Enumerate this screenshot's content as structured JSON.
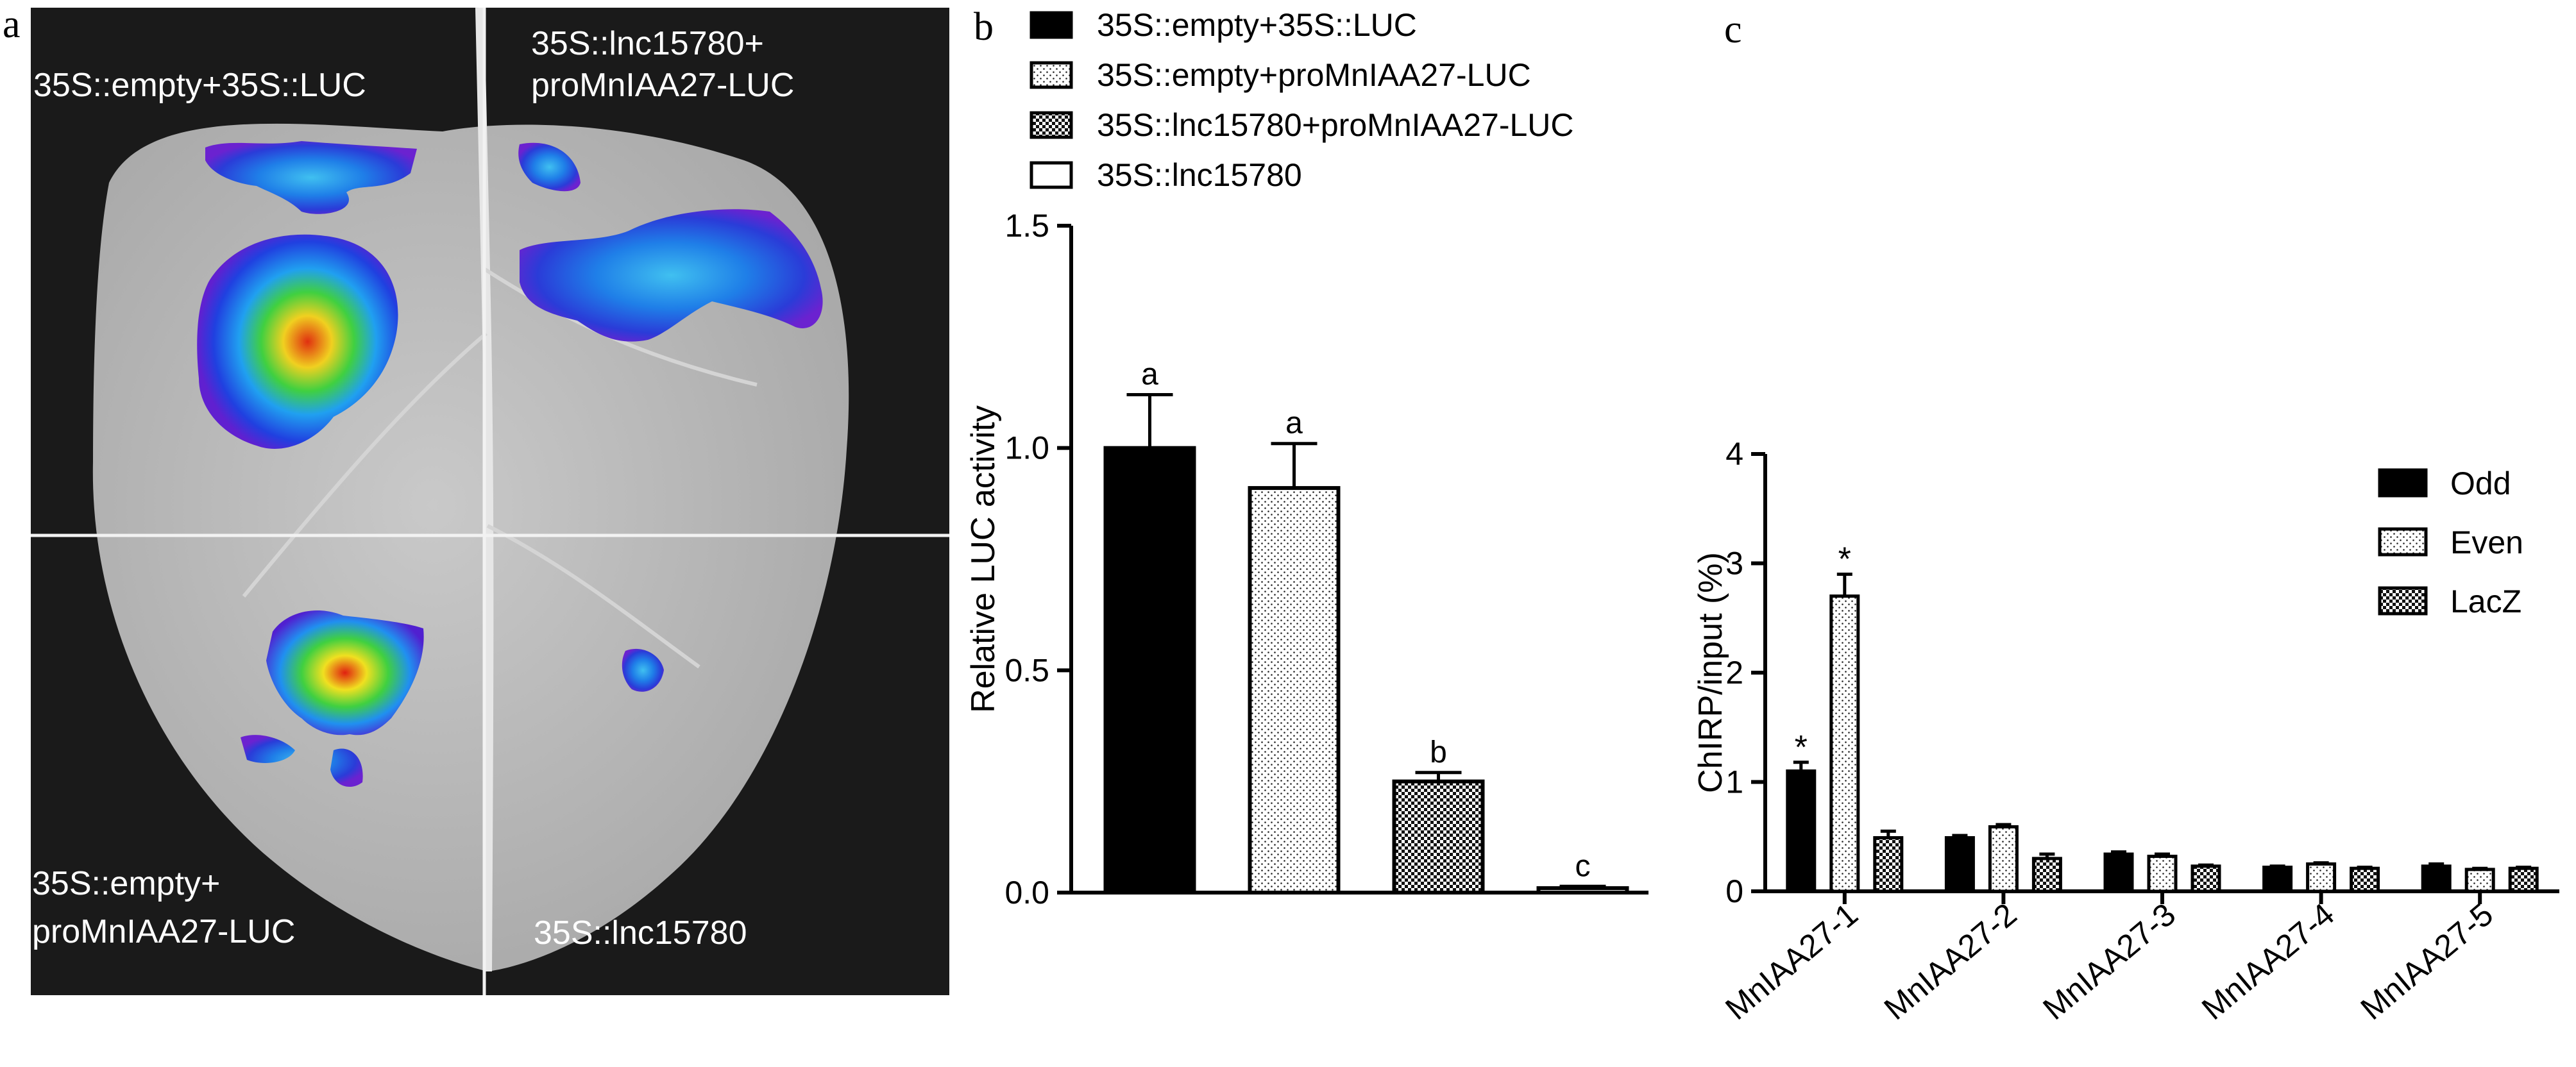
{
  "panel_labels": {
    "a": "a",
    "b": "b",
    "c": "c"
  },
  "panel_a": {
    "quadrants": {
      "top_left": "35S::empty+35S::LUC",
      "top_right_1": "35S::lnc15780+",
      "top_right_2": "proMnIAA27-LUC",
      "bottom_left_1": "35S::empty+",
      "bottom_left_2": "proMnIAA27-LUC",
      "bottom_right": "35S::lnc15780"
    }
  },
  "chart_data": [
    {
      "type": "bar",
      "title": "",
      "ylabel": "Relative LUC activity",
      "ylim": [
        0,
        1.5
      ],
      "yticks": [
        "0.0",
        "0.5",
        "1.0",
        "1.5"
      ],
      "legend_position": "top",
      "series": [
        {
          "name": "35S::empty+35S::LUC",
          "value": 1.0,
          "error": 0.12,
          "sig": "a",
          "pattern": "solid"
        },
        {
          "name": "35S::empty+proMnIAA27-LUC",
          "value": 0.91,
          "error": 0.1,
          "sig": "a",
          "pattern": "dots"
        },
        {
          "name": "35S::lnc15780+proMnIAA27-LUC",
          "value": 0.25,
          "error": 0.02,
          "sig": "b",
          "pattern": "check"
        },
        {
          "name": "35S::lnc15780",
          "value": 0.01,
          "error": 0.004,
          "sig": "c",
          "pattern": "none"
        }
      ]
    },
    {
      "type": "bar",
      "title": "",
      "ylabel": "ChIRP/input (%)",
      "ylim": [
        0,
        4
      ],
      "yticks": [
        "0",
        "1",
        "2",
        "3",
        "4"
      ],
      "legend_position": "top-right",
      "categories": [
        "MnIAA27-1",
        "MnIAA27-2",
        "MnIAA27-3",
        "MnIAA27-4",
        "MnIAA27-5"
      ],
      "series": [
        {
          "name": "Odd",
          "pattern": "solid",
          "values": [
            1.1,
            0.49,
            0.34,
            0.22,
            0.23
          ],
          "errors": [
            0.08,
            0.02,
            0.02,
            0.01,
            0.02
          ],
          "sig": [
            "*",
            "",
            "",
            "",
            ""
          ]
        },
        {
          "name": "Even",
          "pattern": "dots",
          "values": [
            2.7,
            0.59,
            0.32,
            0.25,
            0.2
          ],
          "errors": [
            0.2,
            0.02,
            0.02,
            0.01,
            0.01
          ],
          "sig": [
            "*",
            "",
            "",
            "",
            ""
          ]
        },
        {
          "name": "LacZ",
          "pattern": "check",
          "values": [
            0.49,
            0.3,
            0.23,
            0.21,
            0.21
          ],
          "errors": [
            0.06,
            0.04,
            0.01,
            0.01,
            0.01
          ],
          "sig": [
            "",
            "",
            "",
            "",
            ""
          ]
        }
      ]
    }
  ]
}
